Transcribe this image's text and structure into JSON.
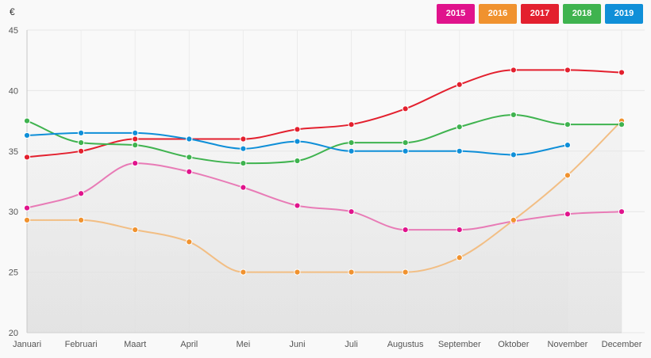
{
  "chart_data": {
    "type": "line",
    "ylabel": "€",
    "ylim": [
      20,
      45
    ],
    "yticks": [
      20,
      25,
      30,
      35,
      40,
      45
    ],
    "categories": [
      "Januari",
      "Februari",
      "Maart",
      "April",
      "Mei",
      "Juni",
      "Juli",
      "Augustus",
      "September",
      "Oktober",
      "November",
      "December"
    ],
    "grid": true,
    "legend_position": "top-right",
    "series": [
      {
        "name": "2015",
        "color": "#e0138c",
        "line_color": "#e87bb6",
        "values": [
          30.3,
          31.5,
          34.0,
          33.3,
          32.0,
          30.5,
          30.0,
          28.5,
          28.5,
          29.2,
          29.8,
          30.0
        ]
      },
      {
        "name": "2016",
        "color": "#f0922f",
        "line_color": "#f2be84",
        "values": [
          29.3,
          29.3,
          28.5,
          27.5,
          25.0,
          25.0,
          25.0,
          25.0,
          26.2,
          29.3,
          33.0,
          37.5
        ]
      },
      {
        "name": "2017",
        "color": "#e3202e",
        "line_color": "#e3202e",
        "values": [
          34.5,
          35.0,
          36.0,
          36.0,
          36.0,
          36.8,
          37.2,
          38.5,
          40.5,
          41.7,
          41.7,
          41.5
        ]
      },
      {
        "name": "2018",
        "color": "#3fb34f",
        "line_color": "#3fb34f",
        "values": [
          37.5,
          35.7,
          35.5,
          34.5,
          34.0,
          34.2,
          35.7,
          35.7,
          37.0,
          38.0,
          37.2,
          37.2
        ]
      },
      {
        "name": "2019",
        "color": "#0f8fd8",
        "line_color": "#0f8fd8",
        "values": [
          36.3,
          36.5,
          36.5,
          36.0,
          35.2,
          35.8,
          35.0,
          35.0,
          35.0,
          34.7,
          35.5,
          null
        ]
      }
    ]
  }
}
